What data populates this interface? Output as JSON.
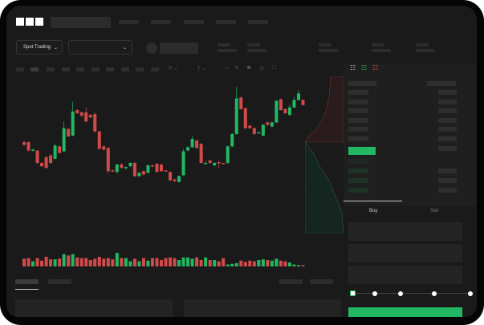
{
  "header": {
    "logo": "OKX"
  },
  "toolbar": {
    "market_selector": "Spot Trading",
    "pair_selector": ""
  },
  "orderbook": {
    "view_icons": [
      "orderbook-both-icon",
      "orderbook-bids-icon",
      "orderbook-asks-icon"
    ]
  },
  "trade_form": {
    "tabs": [
      {
        "label": "Buy",
        "active": true
      },
      {
        "label": "Sell",
        "active": false
      }
    ],
    "slider_stops": 5,
    "slider_value": 0
  },
  "colors": {
    "up": "#22b863",
    "down": "#d24a4a",
    "background": "#1a1a1a"
  },
  "chart_data": {
    "type": "candlestick",
    "candles": [
      [
        118,
        115,
        120,
        113
      ],
      [
        118,
        108,
        119,
        107
      ],
      [
        108,
        109,
        110,
        107
      ],
      [
        108,
        93,
        100,
        91
      ],
      [
        93,
        89,
        94,
        88
      ],
      [
        100,
        87,
        101,
        86
      ],
      [
        102,
        93,
        104,
        92
      ],
      [
        98,
        114,
        116,
        97
      ],
      [
        113,
        105,
        114,
        104
      ],
      [
        107,
        135,
        143,
        106
      ],
      [
        134,
        125,
        135,
        124
      ],
      [
        126,
        155,
        167,
        125
      ],
      [
        157,
        153,
        158,
        152
      ],
      [
        154,
        150,
        155,
        149
      ],
      [
        154,
        143,
        160,
        142
      ],
      [
        151,
        148,
        152,
        147
      ],
      [
        152,
        131,
        154,
        130
      ],
      [
        131,
        110,
        132,
        109
      ],
      [
        113,
        109,
        114,
        108
      ],
      [
        111,
        83,
        112,
        80
      ],
      [
        84,
        83,
        85,
        82
      ],
      [
        82,
        91,
        92,
        80
      ],
      [
        91,
        87,
        93,
        86
      ],
      [
        87,
        88,
        89,
        85
      ],
      [
        89,
        93,
        94,
        88
      ],
      [
        93,
        77,
        94,
        76
      ],
      [
        77,
        81,
        82,
        76
      ],
      [
        83,
        79,
        84,
        78
      ],
      [
        81,
        90,
        91,
        80
      ],
      [
        90,
        89,
        91,
        88
      ],
      [
        92,
        82,
        93,
        81
      ],
      [
        91,
        83,
        92,
        82
      ],
      [
        84,
        83,
        84,
        82
      ],
      [
        82,
        72,
        83,
        71
      ],
      [
        73,
        71,
        74,
        70
      ],
      [
        70,
        77,
        78,
        69
      ],
      [
        78,
        107,
        110,
        77
      ],
      [
        108,
        112,
        113,
        107
      ],
      [
        112,
        122,
        125,
        111
      ],
      [
        120,
        111,
        121,
        110
      ],
      [
        116,
        93,
        117,
        92
      ],
      [
        92,
        93,
        95,
        91
      ],
      [
        96,
        93,
        97,
        92
      ],
      [
        90,
        93,
        94,
        89
      ],
      [
        94,
        93,
        95,
        86
      ],
      [
        93,
        92,
        93,
        91
      ],
      [
        93,
        113,
        114,
        92
      ],
      [
        113,
        128,
        129,
        112
      ],
      [
        128,
        171,
        185,
        127
      ],
      [
        172,
        158,
        174,
        157
      ],
      [
        159,
        135,
        160,
        134
      ],
      [
        138,
        135,
        139,
        134
      ],
      [
        135,
        128,
        136,
        127
      ],
      [
        130,
        130,
        131,
        129
      ],
      [
        126,
        139,
        140,
        125
      ],
      [
        142,
        139,
        143,
        138
      ],
      [
        137,
        142,
        143,
        136
      ],
      [
        142,
        168,
        169,
        141
      ],
      [
        170,
        157,
        171,
        156
      ],
      [
        158,
        153,
        159,
        152
      ],
      [
        151,
        160,
        164,
        150
      ],
      [
        160,
        169,
        173,
        159
      ],
      [
        169,
        177,
        181,
        168
      ],
      [
        169,
        163,
        170,
        162
      ],
      [
        161,
        167,
        172,
        160
      ]
    ],
    "volume": [
      12,
      13,
      8,
      13,
      9,
      15,
      11,
      11,
      12,
      19,
      17,
      19,
      14,
      13,
      13,
      10,
      12,
      15,
      12,
      13,
      11,
      21,
      13,
      13,
      8,
      12,
      8,
      13,
      9,
      13,
      13,
      10,
      13,
      14,
      13,
      10,
      14,
      14,
      12,
      14,
      10,
      14,
      10,
      10,
      8,
      13,
      3,
      4,
      5,
      9,
      7,
      9,
      8,
      10,
      11,
      10,
      9,
      12,
      9,
      8,
      6,
      3,
      2,
      2,
      5
    ],
    "xlabel": "",
    "ylabel": ""
  }
}
